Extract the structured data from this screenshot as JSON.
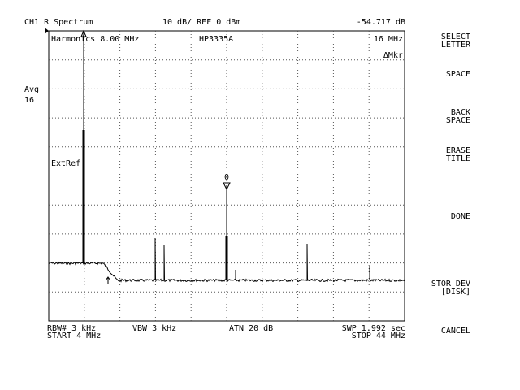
{
  "header": {
    "channel": "CH1 R  Spectrum",
    "scale": "10 dB/ REF 0 dBm",
    "readout": "-54.717 dB"
  },
  "display": {
    "title": "Harmonics  8.00 MHz",
    "source": "HP3335A",
    "marker_freq": "16 MHz",
    "marker_mode": "ΔMkr",
    "ext_ref": "ExtRef",
    "marker_label": "0"
  },
  "averaging": {
    "label": "Avg",
    "count": "16"
  },
  "footer": {
    "rbw": "RBW# 3 kHz",
    "vbw": "VBW 3 kHz",
    "atten": "ATN  20 dB",
    "sweep": "SWP  1.992 sec",
    "start": "START  4 MHz",
    "stop": "STOP  44 MHz"
  },
  "softkeys": [
    [
      "SELECT",
      "LETTER"
    ],
    [
      "SPACE"
    ],
    [
      "BACK",
      "SPACE"
    ],
    [
      "ERASE",
      "TITLE"
    ],
    [
      "DONE"
    ],
    [
      "STOR DEV",
      "[DISK]"
    ],
    [
      "CANCEL"
    ]
  ]
}
